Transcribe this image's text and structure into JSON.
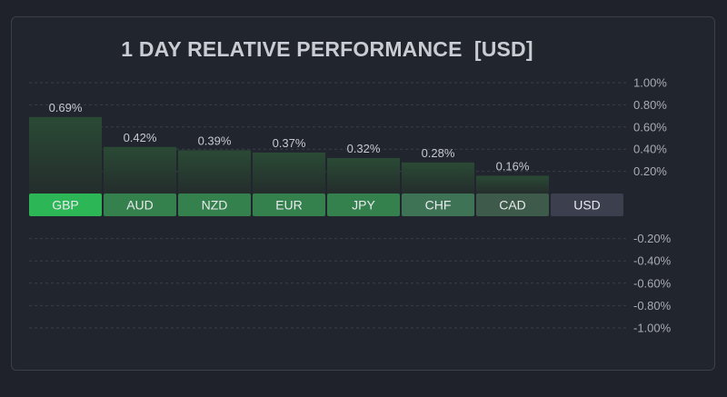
{
  "chart_data": {
    "type": "bar",
    "title": "1 DAY RELATIVE PERFORMANCE  [USD]",
    "categories": [
      "GBP",
      "AUD",
      "NZD",
      "EUR",
      "JPY",
      "CHF",
      "CAD",
      "USD"
    ],
    "values": [
      0.69,
      0.42,
      0.39,
      0.37,
      0.32,
      0.28,
      0.16,
      0
    ],
    "value_labels": [
      "0.69%",
      "0.42%",
      "0.39%",
      "0.37%",
      "0.32%",
      "0.28%",
      "0.16%",
      ""
    ],
    "positive_ticks": [
      "1.00%",
      "0.80%",
      "0.60%",
      "0.40%",
      "0.20%"
    ],
    "negative_ticks": [
      "-0.20%",
      "-0.40%",
      "-0.60%",
      "-0.80%",
      "-1.00%"
    ],
    "tick_values_positive": [
      1.0,
      0.8,
      0.6,
      0.4,
      0.2
    ],
    "tick_values_negative": [
      -0.2,
      -0.4,
      -0.6,
      -0.8,
      -1.0
    ],
    "ylim": [
      -1.0,
      1.0
    ],
    "grid": true,
    "xlabel": "",
    "ylabel": "",
    "colors": {
      "top": "#2db656",
      "strong": "#34814d",
      "mid": "#3f7355",
      "weak": "#3e5a4b",
      "neutral": "#3b3f4e",
      "bar_fill_top": "#2a4a35",
      "bar_fill_bottom": "#242d2c",
      "grid": "#3a3e48"
    }
  }
}
